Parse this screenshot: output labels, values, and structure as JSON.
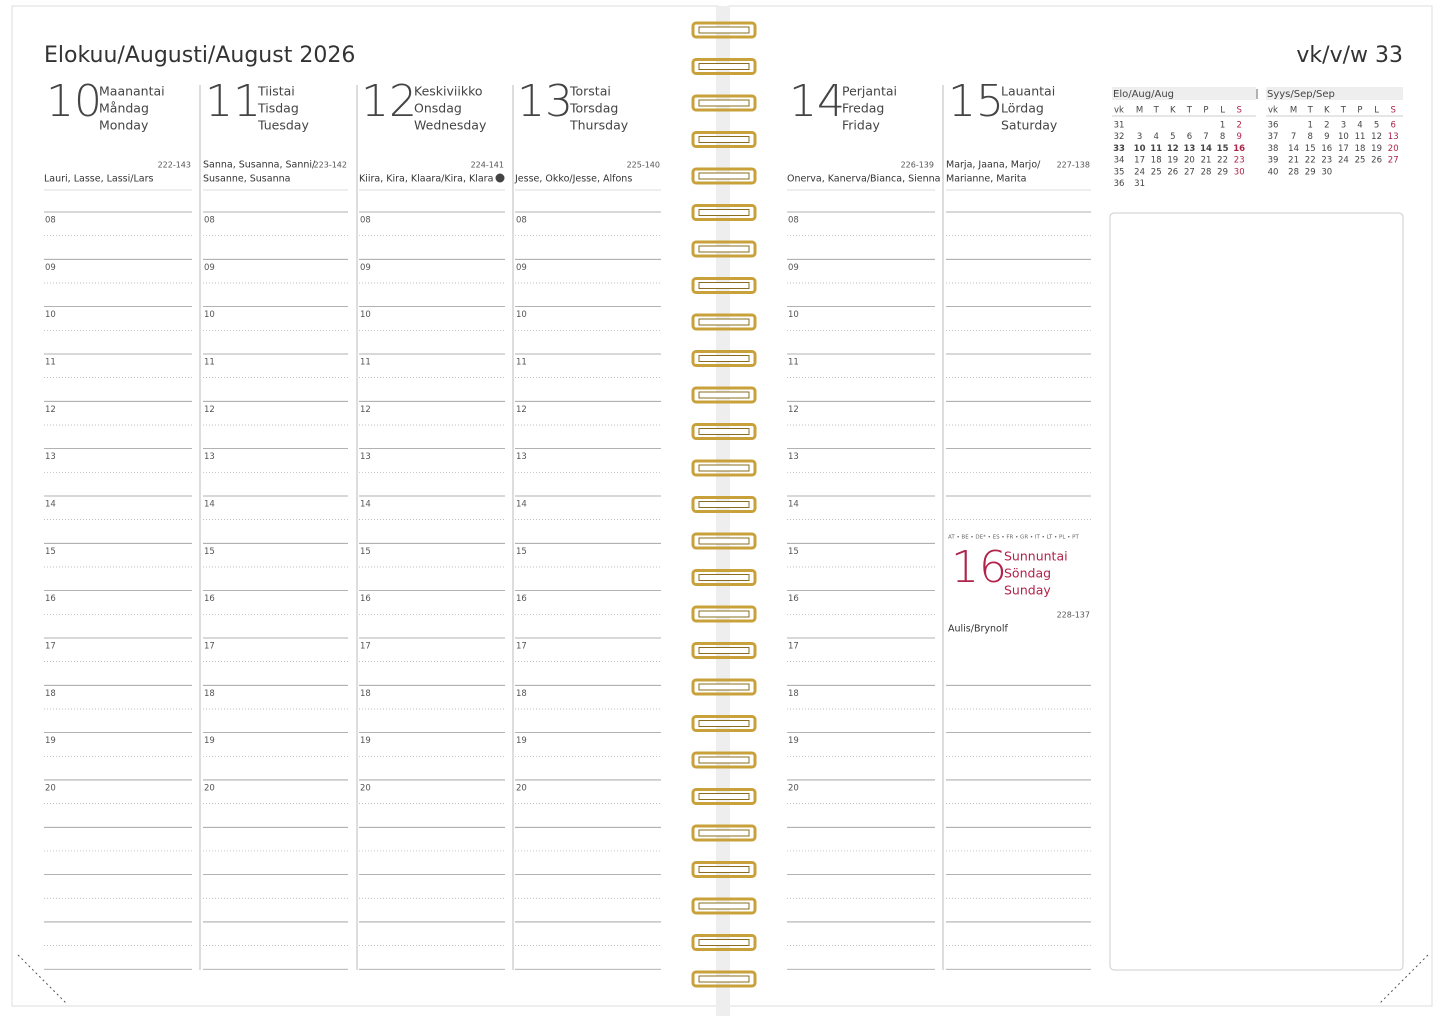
{
  "header": {
    "title": "Elokuu/Augusti/August 2026",
    "week": "vk/v/w 33"
  },
  "days": [
    {
      "number": "10",
      "names": [
        "Maanantai",
        "Måndag",
        "Monday"
      ],
      "code": "222-143",
      "name_days": [
        "Lauri, Lasse, Lassi/Lars"
      ]
    },
    {
      "number": "11",
      "names": [
        "Tiistai",
        "Tisdag",
        "Tuesday"
      ],
      "code": "223-142",
      "name_days": [
        "Sanna, Susanna, Sanni/",
        "Susanne, Susanna"
      ]
    },
    {
      "number": "12",
      "names": [
        "Keskiviikko",
        "Onsdag",
        "Wednesday"
      ],
      "code": "224-141",
      "name_days": [
        "Kiira, Kira, Klaara/Kira, Klara"
      ]
    },
    {
      "number": "13",
      "names": [
        "Torstai",
        "Torsdag",
        "Thursday"
      ],
      "code": "225-140",
      "name_days": [
        "Jesse, Okko/Jesse, Alfons"
      ]
    },
    {
      "number": "14",
      "names": [
        "Perjantai",
        "Fredag",
        "Friday"
      ],
      "code": "226-139",
      "name_days": [
        "Onerva, Kanerva/Bianca, Sienna"
      ]
    },
    {
      "number": "15",
      "names": [
        "Lauantai",
        "Lördag",
        "Saturday"
      ],
      "code": "227-138",
      "name_days": [
        "Marja, Jaana, Marjo/",
        "Marianne, Marita"
      ]
    }
  ],
  "sunday": {
    "holidays": "AT • BE • DE* • ES • FR • GR • IT • LT • PL • PT",
    "number": "16",
    "names": [
      "Sunnuntai",
      "Söndag",
      "Sunday"
    ],
    "code": "228-137",
    "name_days": [
      "Aulis/Brynolf"
    ]
  },
  "hours": [
    "08",
    "09",
    "10",
    "11",
    "12",
    "13",
    "14",
    "15",
    "16",
    "17",
    "18",
    "19",
    "20"
  ],
  "mini_calendars": [
    {
      "title": "Elo/Aug/Aug",
      "header": [
        "vk",
        "M",
        "T",
        "K",
        "T",
        "P",
        "L",
        "S"
      ],
      "rows": [
        [
          "31",
          null,
          null,
          null,
          null,
          null,
          "1",
          "2"
        ],
        [
          "32",
          "3",
          "4",
          "5",
          "6",
          "7",
          "8",
          "9"
        ],
        [
          "33",
          "10",
          "11",
          "12",
          "13",
          "14",
          "15",
          "16"
        ],
        [
          "34",
          "17",
          "18",
          "19",
          "20",
          "21",
          "22",
          "23"
        ],
        [
          "35",
          "24",
          "25",
          "26",
          "27",
          "28",
          "29",
          "30"
        ],
        [
          "36",
          "31",
          null,
          null,
          null,
          null,
          null,
          null
        ]
      ]
    },
    {
      "title": "Syys/Sep/Sep",
      "header": [
        "vk",
        "M",
        "T",
        "K",
        "T",
        "P",
        "L",
        "S"
      ],
      "rows": [
        [
          "36",
          null,
          "1",
          "2",
          "3",
          "4",
          "5",
          "6"
        ],
        [
          "37",
          "7",
          "8",
          "9",
          "10",
          "11",
          "12",
          "13"
        ],
        [
          "38",
          "14",
          "15",
          "16",
          "17",
          "18",
          "19",
          "20"
        ],
        [
          "39",
          "21",
          "22",
          "23",
          "24",
          "25",
          "26",
          "27"
        ],
        [
          "40",
          "28",
          "29",
          "30",
          null,
          null,
          null,
          null
        ]
      ]
    }
  ]
}
